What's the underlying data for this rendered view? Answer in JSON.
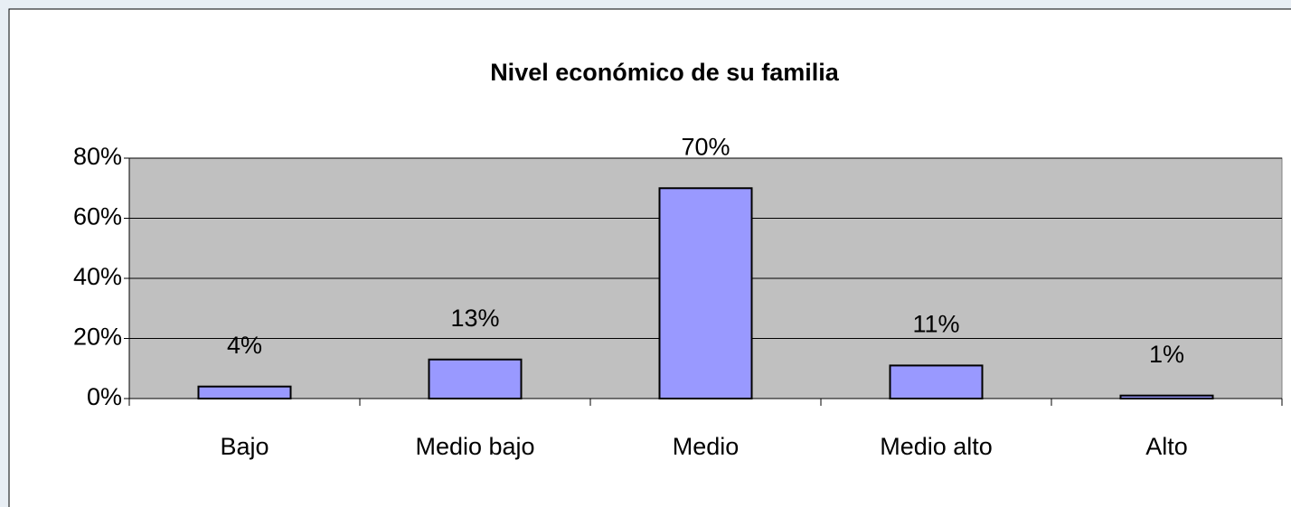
{
  "chart_data": {
    "type": "bar",
    "title": "Nivel económico de su familia",
    "categories": [
      "Bajo",
      "Medio bajo",
      "Medio",
      "Medio alto",
      "Alto"
    ],
    "values": [
      4,
      13,
      70,
      11,
      1
    ],
    "value_labels": [
      "4%",
      "13%",
      "70%",
      "11%",
      "1%"
    ],
    "color": "#9999ff",
    "ylim": [
      0,
      80
    ],
    "yticks": [
      {
        "value": 0,
        "label": "0%"
      },
      {
        "value": 20,
        "label": "20%"
      },
      {
        "value": 40,
        "label": "40%"
      },
      {
        "value": 60,
        "label": "60%"
      },
      {
        "value": 80,
        "label": "80%"
      }
    ],
    "grid": true
  }
}
